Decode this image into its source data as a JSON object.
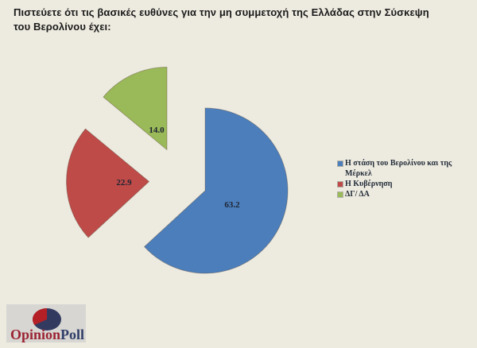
{
  "title": {
    "line1": "Πιστεύετε ότι τις βασικές ευθύνες για την μη συμμετοχή της Ελλάδας στην Σύσκεψη",
    "line2": "του Βερολίνου έχει:"
  },
  "chart_data": {
    "type": "pie",
    "title": "Πιστεύετε ότι τις βασικές ευθύνες για την μη συμμετοχή της Ελλάδας στην Σύσκεψη του Βερολίνου έχει:",
    "unit": "percent",
    "direction": "clockwise",
    "start_angle_deg": 0,
    "exploded": true,
    "legend_position": "right",
    "slices": [
      {
        "label": "Η στάση του Βερολίνου και της Μέρκελ",
        "value": 63.2,
        "display": "63.2",
        "color": "#4B7EBB"
      },
      {
        "label": "Η Κυβέρνηση",
        "value": 22.9,
        "display": "22.9",
        "color": "#BE4B48"
      },
      {
        "label": "ΔΓ/ ΔΑ",
        "value": 14.0,
        "display": "14.0",
        "color": "#9AB958"
      }
    ]
  },
  "logo": {
    "text_primary": "Opinion",
    "text_secondary": "Poll",
    "color_primary": "#9B2433",
    "color_secondary": "#2F3D68",
    "pie_body_color": "#333A60",
    "pie_wedge_color": "#B42025",
    "box_color": "#D7D6D2"
  },
  "colors": {
    "background": "#EDEBE0",
    "label_text": "#1d2433",
    "legend_text": "#222b38",
    "title_text": "#1a1a1a"
  }
}
